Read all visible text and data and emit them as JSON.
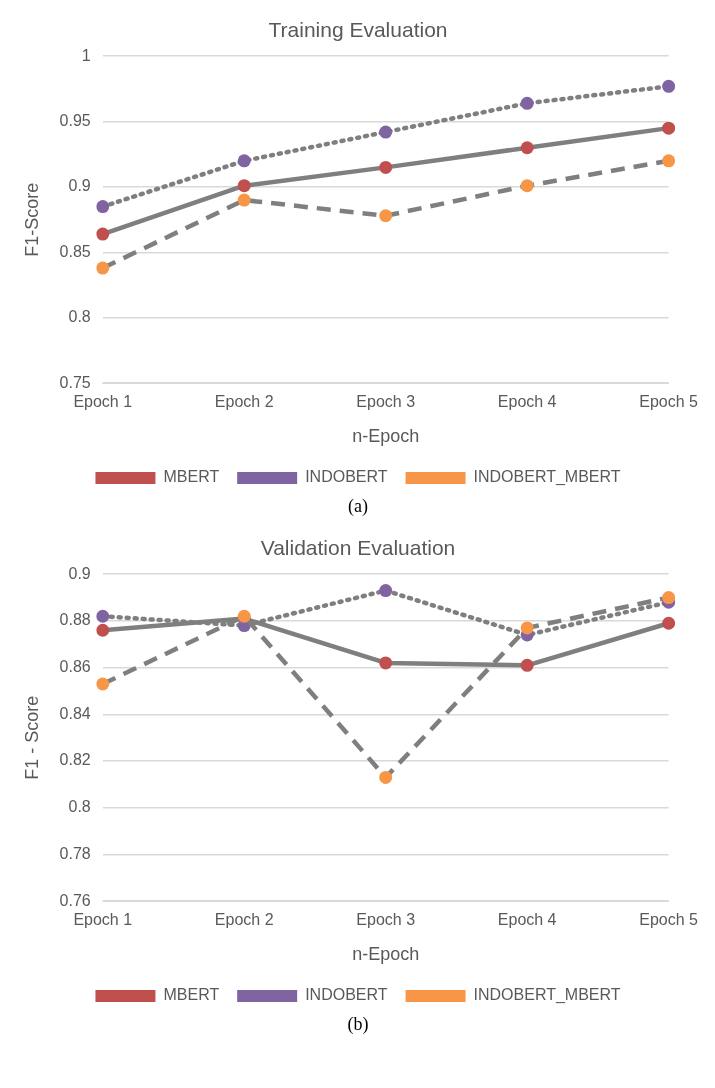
{
  "chart_data": [
    {
      "type": "line",
      "title": "Training Evaluation",
      "xlabel": "n-Epoch",
      "ylabel": "F1-Score",
      "categories": [
        "Epoch 1",
        "Epoch 2",
        "Epoch 3",
        "Epoch 4",
        "Epoch 5"
      ],
      "series": [
        {
          "name": "MBERT",
          "color": "#c0504d",
          "line_style": "solid",
          "values": [
            0.864,
            0.901,
            0.915,
            0.93,
            0.945
          ]
        },
        {
          "name": "INDOBERT",
          "color": "#8064a2",
          "line_style": "dotted",
          "values": [
            0.885,
            0.92,
            0.942,
            0.964,
            0.977
          ]
        },
        {
          "name": "INDOBERT_MBERT",
          "color": "#f79646",
          "line_style": "dashed",
          "values": [
            0.838,
            0.89,
            0.878,
            0.901,
            0.92
          ]
        }
      ],
      "ylim": [
        0.75,
        1
      ],
      "yticks": [
        0.75,
        0.8,
        0.85,
        0.9,
        0.95,
        1
      ],
      "grid": "y",
      "legend": "bottom",
      "marker": "circle",
      "annotations": [
        "(a)"
      ]
    },
    {
      "type": "line",
      "title": "Validation Evaluation",
      "xlabel": "n-Epoch",
      "ylabel": "F1 - Score",
      "categories": [
        "Epoch 1",
        "Epoch 2",
        "Epoch 3",
        "Epoch 4",
        "Epoch 5"
      ],
      "series": [
        {
          "name": "MBERT",
          "color": "#c0504d",
          "line_style": "solid",
          "values": [
            0.876,
            0.881,
            0.862,
            0.861,
            0.879
          ]
        },
        {
          "name": "INDOBERT",
          "color": "#8064a2",
          "line_style": "dotted",
          "values": [
            0.882,
            0.878,
            0.893,
            0.874,
            0.888
          ]
        },
        {
          "name": "INDOBERT_MBERT",
          "color": "#f79646",
          "line_style": "dashed",
          "values": [
            0.853,
            0.882,
            0.813,
            0.877,
            0.89
          ]
        }
      ],
      "ylim": [
        0.76,
        0.9
      ],
      "yticks": [
        0.76,
        0.78,
        0.8,
        0.82,
        0.84,
        0.86,
        0.88,
        0.9
      ],
      "grid": "y",
      "legend": "bottom",
      "marker": "circle",
      "annotations": [
        "(b)"
      ]
    }
  ]
}
